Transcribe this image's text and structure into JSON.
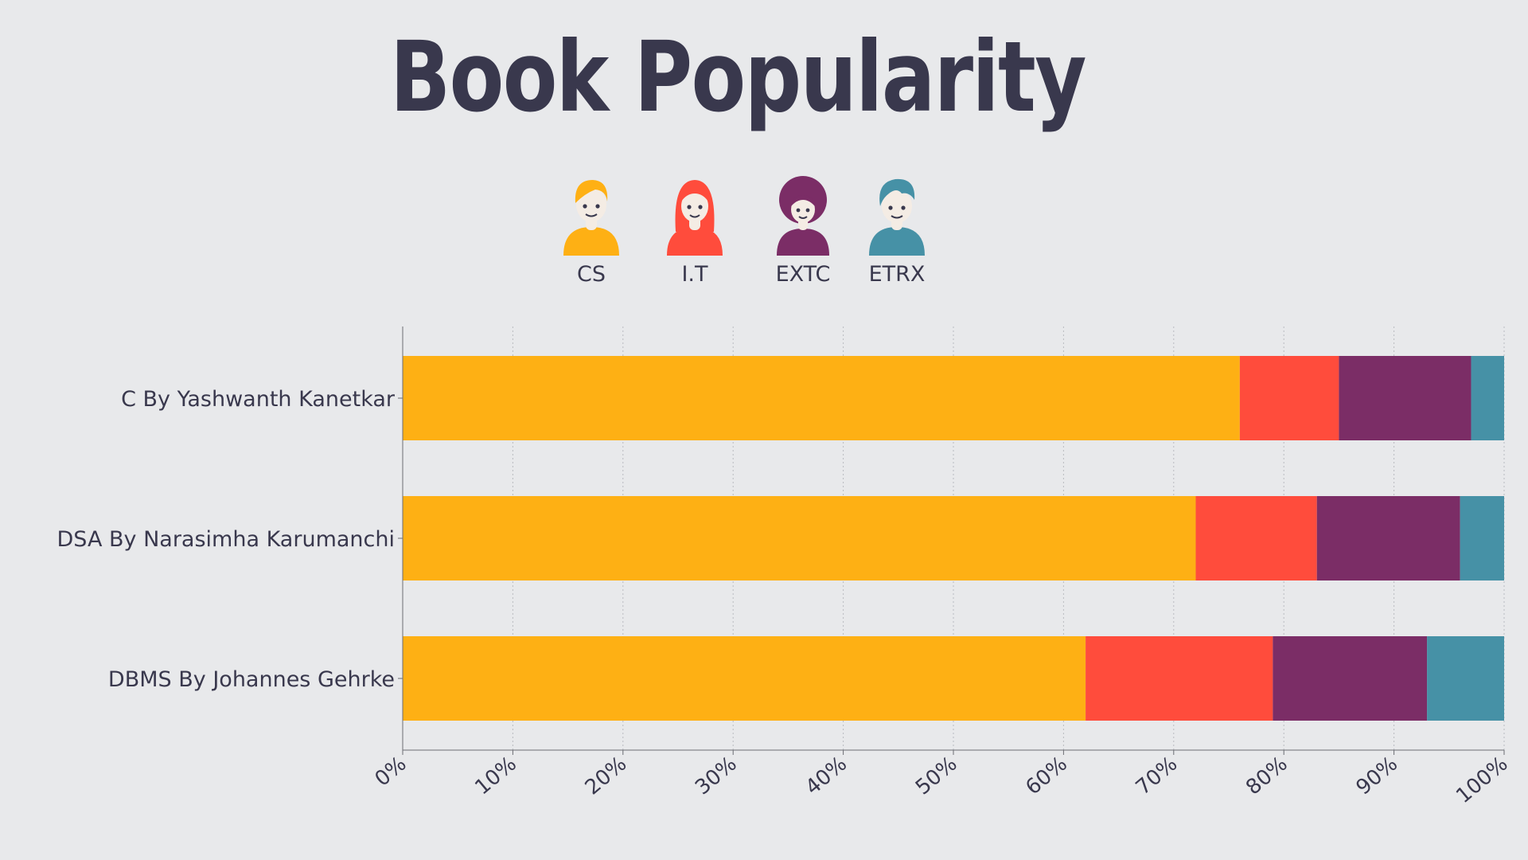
{
  "title": "Book Popularity",
  "legend": [
    {
      "label": "CS",
      "color": "#feb014",
      "icon": "person-short-hair-icon"
    },
    {
      "label": "I.T",
      "color": "#ff4c3c",
      "icon": "person-long-hair-icon"
    },
    {
      "label": "EXTC",
      "color": "#7b2d66",
      "icon": "person-afro-icon"
    },
    {
      "label": "ETRX",
      "color": "#4691a6",
      "icon": "person-quiff-icon"
    }
  ],
  "chart_data": {
    "type": "bar",
    "orientation": "horizontal",
    "stacked": true,
    "categories": [
      "C By Yashwanth Kanetkar",
      "DSA By Narasimha Karumanchi",
      "DBMS By Johannes Gehrke"
    ],
    "series": [
      {
        "name": "CS",
        "color": "#feb014",
        "values": [
          76,
          72,
          62
        ]
      },
      {
        "name": "I.T",
        "color": "#ff4c3c",
        "values": [
          9,
          11,
          17
        ]
      },
      {
        "name": "EXTC",
        "color": "#7b2d66",
        "values": [
          12,
          13,
          14
        ]
      },
      {
        "name": "ETRX",
        "color": "#4691a6",
        "values": [
          3,
          4,
          7
        ]
      }
    ],
    "xlim": [
      0,
      100
    ],
    "xticks": [
      "0%",
      "10%",
      "20%",
      "30%",
      "40%",
      "50%",
      "60%",
      "70%",
      "80%",
      "90%",
      "100%"
    ],
    "grid": "vertical dotted",
    "legend_position": "top"
  }
}
